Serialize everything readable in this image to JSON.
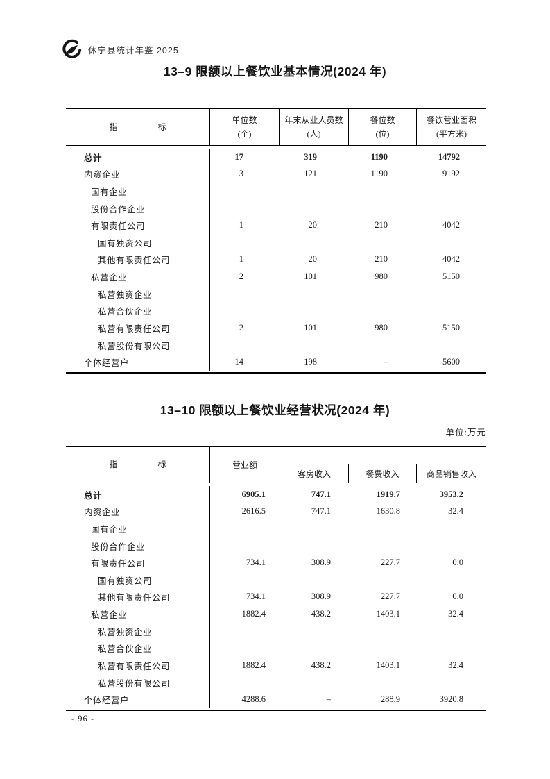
{
  "page": {
    "header": {
      "logo_icon": "yearbook-swoosh-logo",
      "yearbook_title": "休宁县统计年鉴 2025"
    },
    "footer": {
      "page_number": "- 96 -"
    }
  },
  "table1": {
    "title": "13–9 限额以上餐饮业基本情况(2024 年)",
    "header": {
      "indicator_char_1": "指",
      "indicator_char_2": "标",
      "col1_line1": "单位数",
      "col1_line2": "(个)",
      "col2_line1": "年末从业人员数",
      "col2_line2": "(人)",
      "col3_line1": "餐位数",
      "col3_line2": "(位)",
      "col4_line1": "餐饮营业面积",
      "col4_line2": "(平方米)"
    },
    "rows": [
      {
        "label": "总计",
        "indent": 0,
        "bold": true,
        "values": [
          "17",
          "319",
          "1190",
          "14792"
        ]
      },
      {
        "label": "内资企业",
        "indent": 0,
        "bold": false,
        "values": [
          "3",
          "121",
          "1190",
          "9192"
        ]
      },
      {
        "label": "国有企业",
        "indent": 1,
        "bold": false,
        "values": [
          "",
          "",
          "",
          ""
        ]
      },
      {
        "label": "股份合作企业",
        "indent": 1,
        "bold": false,
        "values": [
          "",
          "",
          "",
          ""
        ]
      },
      {
        "label": "有限责任公司",
        "indent": 1,
        "bold": false,
        "values": [
          "1",
          "20",
          "210",
          "4042"
        ]
      },
      {
        "label": "国有独资公司",
        "indent": 2,
        "bold": false,
        "values": [
          "",
          "",
          "",
          ""
        ]
      },
      {
        "label": "其他有限责任公司",
        "indent": 2,
        "bold": false,
        "values": [
          "1",
          "20",
          "210",
          "4042"
        ]
      },
      {
        "label": "私营企业",
        "indent": 1,
        "bold": false,
        "values": [
          "2",
          "101",
          "980",
          "5150"
        ]
      },
      {
        "label": "私营独资企业",
        "indent": 2,
        "bold": false,
        "values": [
          "",
          "",
          "",
          ""
        ]
      },
      {
        "label": "私营合伙企业",
        "indent": 2,
        "bold": false,
        "values": [
          "",
          "",
          "",
          ""
        ]
      },
      {
        "label": "私营有限责任公司",
        "indent": 2,
        "bold": false,
        "values": [
          "2",
          "101",
          "980",
          "5150"
        ]
      },
      {
        "label": "私营股份有限公司",
        "indent": 2,
        "bold": false,
        "values": [
          "",
          "",
          "",
          ""
        ]
      },
      {
        "label": "个体经营户",
        "indent": 0,
        "bold": false,
        "values": [
          "14",
          "198",
          "–",
          "5600"
        ]
      }
    ]
  },
  "table2": {
    "title": "13–10 限额以上餐饮业经营状况(2024 年)",
    "unit_note": "单位:万元",
    "header": {
      "indicator_char_1": "指",
      "indicator_char_2": "标",
      "turnover_label": "营业额",
      "subcol_1": "客房收入",
      "subcol_2": "餐费收入",
      "subcol_3": "商品销售收入"
    },
    "rows": [
      {
        "label": "总计",
        "indent": 0,
        "bold": true,
        "values": [
          "6905.1",
          "747.1",
          "1919.7",
          "3953.2"
        ]
      },
      {
        "label": "内资企业",
        "indent": 0,
        "bold": false,
        "values": [
          "2616.5",
          "747.1",
          "1630.8",
          "32.4"
        ]
      },
      {
        "label": "国有企业",
        "indent": 1,
        "bold": false,
        "values": [
          "",
          "",
          "",
          ""
        ]
      },
      {
        "label": "股份合作企业",
        "indent": 1,
        "bold": false,
        "values": [
          "",
          "",
          "",
          ""
        ]
      },
      {
        "label": "有限责任公司",
        "indent": 1,
        "bold": false,
        "values": [
          "734.1",
          "308.9",
          "227.7",
          "0.0"
        ]
      },
      {
        "label": "国有独资公司",
        "indent": 2,
        "bold": false,
        "values": [
          "",
          "",
          "",
          ""
        ]
      },
      {
        "label": "其他有限责任公司",
        "indent": 2,
        "bold": false,
        "values": [
          "734.1",
          "308.9",
          "227.7",
          "0.0"
        ]
      },
      {
        "label": "私营企业",
        "indent": 1,
        "bold": false,
        "values": [
          "1882.4",
          "438.2",
          "1403.1",
          "32.4"
        ]
      },
      {
        "label": "私营独资企业",
        "indent": 2,
        "bold": false,
        "values": [
          "",
          "",
          "",
          ""
        ]
      },
      {
        "label": "私营合伙企业",
        "indent": 2,
        "bold": false,
        "values": [
          "",
          "",
          "",
          ""
        ]
      },
      {
        "label": "私营有限责任公司",
        "indent": 2,
        "bold": false,
        "values": [
          "1882.4",
          "438.2",
          "1403.1",
          "32.4"
        ]
      },
      {
        "label": "私营股份有限公司",
        "indent": 2,
        "bold": false,
        "values": [
          "",
          "",
          "",
          ""
        ]
      },
      {
        "label": "个体经营户",
        "indent": 0,
        "bold": false,
        "values": [
          "4288.6",
          "–",
          "288.9",
          "3920.8"
        ]
      }
    ]
  }
}
